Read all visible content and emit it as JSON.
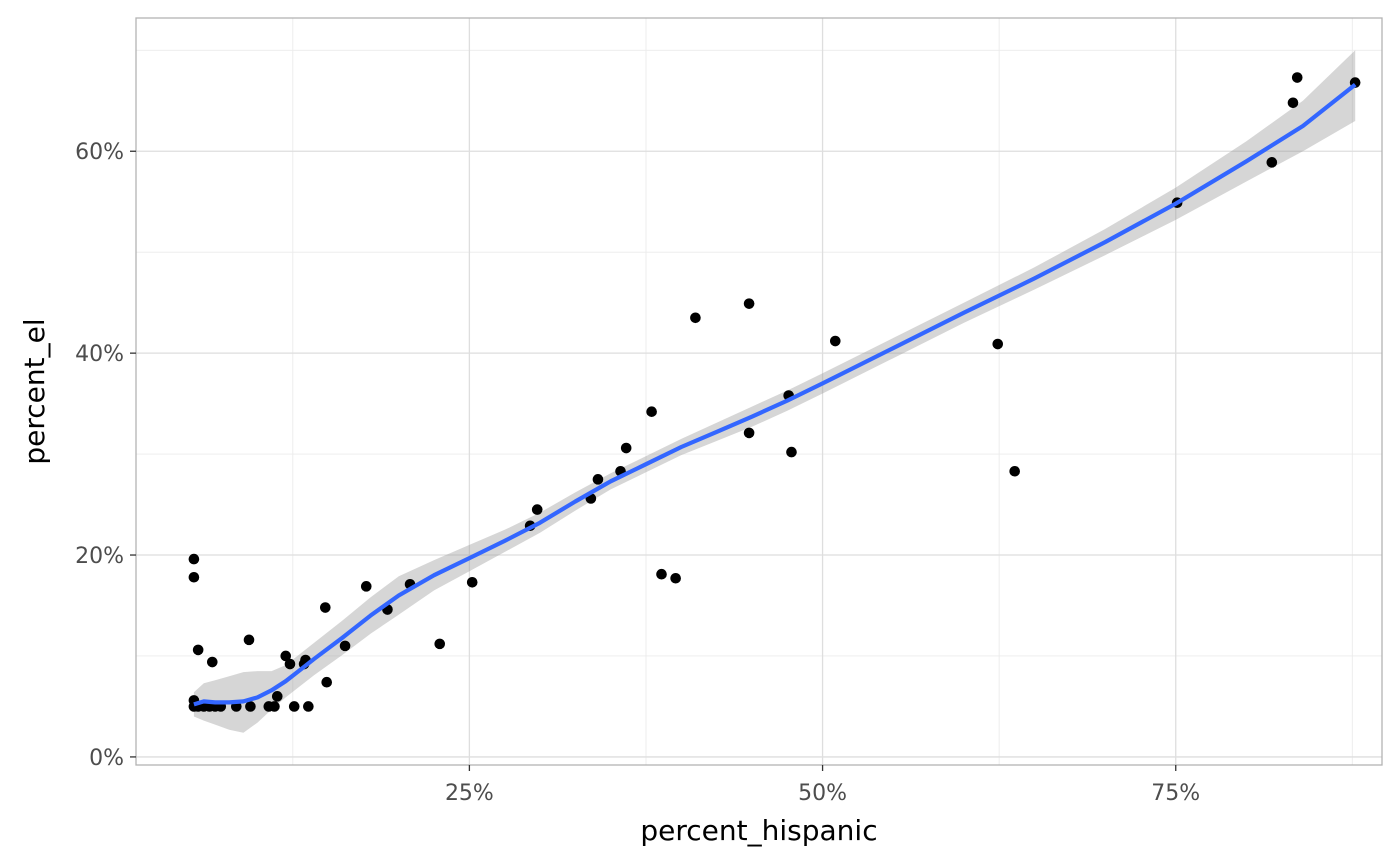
{
  "chart_data": {
    "type": "scatter",
    "xlabel": "percent_hispanic",
    "ylabel": "percent_el",
    "xlim": [
      0.014,
      0.896
    ],
    "ylim": [
      -0.008,
      0.732
    ],
    "x_ticks": [
      {
        "value": 0.25,
        "label": "25%"
      },
      {
        "value": 0.5,
        "label": "50%"
      },
      {
        "value": 0.75,
        "label": "75%"
      }
    ],
    "y_ticks": [
      {
        "value": 0.0,
        "label": "0%"
      },
      {
        "value": 0.2,
        "label": "20%"
      },
      {
        "value": 0.4,
        "label": "40%"
      },
      {
        "value": 0.6,
        "label": "60%"
      }
    ],
    "x_minor_breaks": [
      0.125,
      0.375,
      0.625,
      0.875
    ],
    "y_minor_breaks": [
      0.1,
      0.3,
      0.5,
      0.7
    ],
    "grid": true,
    "points": [
      {
        "x": 0.055,
        "y": 0.196
      },
      {
        "x": 0.055,
        "y": 0.178
      },
      {
        "x": 0.058,
        "y": 0.106
      },
      {
        "x": 0.068,
        "y": 0.094
      },
      {
        "x": 0.055,
        "y": 0.056
      },
      {
        "x": 0.055,
        "y": 0.05
      },
      {
        "x": 0.058,
        "y": 0.05
      },
      {
        "x": 0.062,
        "y": 0.05
      },
      {
        "x": 0.066,
        "y": 0.05
      },
      {
        "x": 0.07,
        "y": 0.05
      },
      {
        "x": 0.074,
        "y": 0.05
      },
      {
        "x": 0.085,
        "y": 0.05
      },
      {
        "x": 0.094,
        "y": 0.116
      },
      {
        "x": 0.095,
        "y": 0.05
      },
      {
        "x": 0.108,
        "y": 0.05
      },
      {
        "x": 0.112,
        "y": 0.05
      },
      {
        "x": 0.114,
        "y": 0.06
      },
      {
        "x": 0.12,
        "y": 0.1
      },
      {
        "x": 0.123,
        "y": 0.092
      },
      {
        "x": 0.126,
        "y": 0.05
      },
      {
        "x": 0.133,
        "y": 0.092
      },
      {
        "x": 0.134,
        "y": 0.096
      },
      {
        "x": 0.136,
        "y": 0.05
      },
      {
        "x": 0.148,
        "y": 0.148
      },
      {
        "x": 0.149,
        "y": 0.074
      },
      {
        "x": 0.162,
        "y": 0.11
      },
      {
        "x": 0.177,
        "y": 0.169
      },
      {
        "x": 0.192,
        "y": 0.146
      },
      {
        "x": 0.208,
        "y": 0.171
      },
      {
        "x": 0.229,
        "y": 0.112
      },
      {
        "x": 0.252,
        "y": 0.173
      },
      {
        "x": 0.293,
        "y": 0.229
      },
      {
        "x": 0.298,
        "y": 0.245
      },
      {
        "x": 0.336,
        "y": 0.256
      },
      {
        "x": 0.341,
        "y": 0.275
      },
      {
        "x": 0.357,
        "y": 0.283
      },
      {
        "x": 0.361,
        "y": 0.306
      },
      {
        "x": 0.379,
        "y": 0.342
      },
      {
        "x": 0.386,
        "y": 0.181
      },
      {
        "x": 0.396,
        "y": 0.177
      },
      {
        "x": 0.41,
        "y": 0.435
      },
      {
        "x": 0.448,
        "y": 0.449
      },
      {
        "x": 0.448,
        "y": 0.321
      },
      {
        "x": 0.476,
        "y": 0.358
      },
      {
        "x": 0.478,
        "y": 0.302
      },
      {
        "x": 0.509,
        "y": 0.412
      },
      {
        "x": 0.624,
        "y": 0.409
      },
      {
        "x": 0.636,
        "y": 0.283
      },
      {
        "x": 0.751,
        "y": 0.549
      },
      {
        "x": 0.818,
        "y": 0.589
      },
      {
        "x": 0.833,
        "y": 0.648
      },
      {
        "x": 0.836,
        "y": 0.673
      },
      {
        "x": 0.877,
        "y": 0.668
      }
    ],
    "smooth": {
      "method": "loess",
      "color": "#3366ff",
      "ribbon_color": "#999999",
      "x": [
        0.055,
        0.062,
        0.07,
        0.08,
        0.09,
        0.1,
        0.11,
        0.12,
        0.13,
        0.14,
        0.16,
        0.18,
        0.2,
        0.225,
        0.25,
        0.275,
        0.3,
        0.325,
        0.35,
        0.375,
        0.4,
        0.425,
        0.45,
        0.475,
        0.5,
        0.55,
        0.6,
        0.65,
        0.7,
        0.75,
        0.8,
        0.84,
        0.877
      ],
      "y": [
        0.052,
        0.055,
        0.054,
        0.054,
        0.055,
        0.059,
        0.066,
        0.075,
        0.086,
        0.097,
        0.118,
        0.14,
        0.16,
        0.18,
        0.197,
        0.214,
        0.232,
        0.253,
        0.273,
        0.29,
        0.307,
        0.322,
        0.337,
        0.353,
        0.37,
        0.405,
        0.44,
        0.474,
        0.51,
        0.548,
        0.59,
        0.625,
        0.666
      ],
      "ymin": [
        0.04,
        0.036,
        0.032,
        0.027,
        0.024,
        0.034,
        0.047,
        0.059,
        0.07,
        0.081,
        0.101,
        0.122,
        0.141,
        0.165,
        0.184,
        0.203,
        0.222,
        0.244,
        0.265,
        0.282,
        0.299,
        0.313,
        0.327,
        0.343,
        0.36,
        0.395,
        0.43,
        0.463,
        0.497,
        0.532,
        0.57,
        0.6,
        0.63
      ],
      "ymax": [
        0.064,
        0.073,
        0.076,
        0.08,
        0.084,
        0.085,
        0.085,
        0.091,
        0.102,
        0.113,
        0.135,
        0.158,
        0.179,
        0.195,
        0.21,
        0.225,
        0.242,
        0.262,
        0.281,
        0.298,
        0.315,
        0.331,
        0.347,
        0.363,
        0.38,
        0.415,
        0.45,
        0.485,
        0.523,
        0.564,
        0.61,
        0.65,
        0.7
      ]
    }
  }
}
